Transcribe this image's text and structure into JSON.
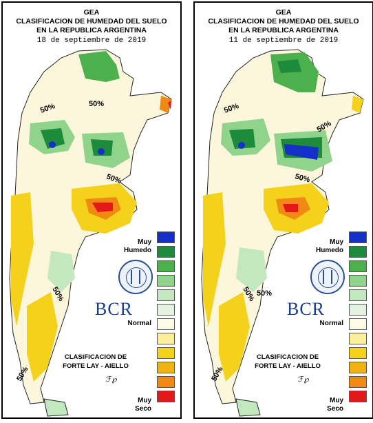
{
  "panels": [
    {
      "header": {
        "org": "GEA",
        "title": "CLASIFICACION DE HUMEDAD DEL SUELO",
        "subtitle": "EN LA REPUBLICA ARGENTINA",
        "date": "18 de septiembre de 2019"
      },
      "contour_labels": [
        "50%",
        "50%",
        "50%",
        "50%",
        "50%"
      ]
    },
    {
      "header": {
        "org": "GEA",
        "title": "CLASIFICACION DE HUMEDAD DEL SUELO",
        "subtitle": "EN LA REPUBLICA ARGENTINA",
        "date": "11 de septiembre de 2019"
      },
      "contour_labels": [
        "50%",
        "50%",
        "50%",
        "50%",
        "50%",
        "50%"
      ]
    }
  ],
  "legend": {
    "top_label": "Muy Humedo",
    "top_label_1": "Muy",
    "top_label_2": "Humedo",
    "mid_label": "Normal",
    "bottom_label_1": "Muy",
    "bottom_label_2": "Seco",
    "colors": [
      "#1430c8",
      "#1e8a3c",
      "#4cb04c",
      "#8fd48a",
      "#c3e8bf",
      "#e4f3e0",
      "#fbfbe6",
      "#fbef9c",
      "#f4d21c",
      "#f0b214",
      "#f08a14",
      "#e41818"
    ]
  },
  "branding": {
    "logo_text": "BCR",
    "classification_line1": "CLASIFICACION DE",
    "classification_line2": "FORTE LAY - AIELLO",
    "islands_label": "ℱ"
  }
}
